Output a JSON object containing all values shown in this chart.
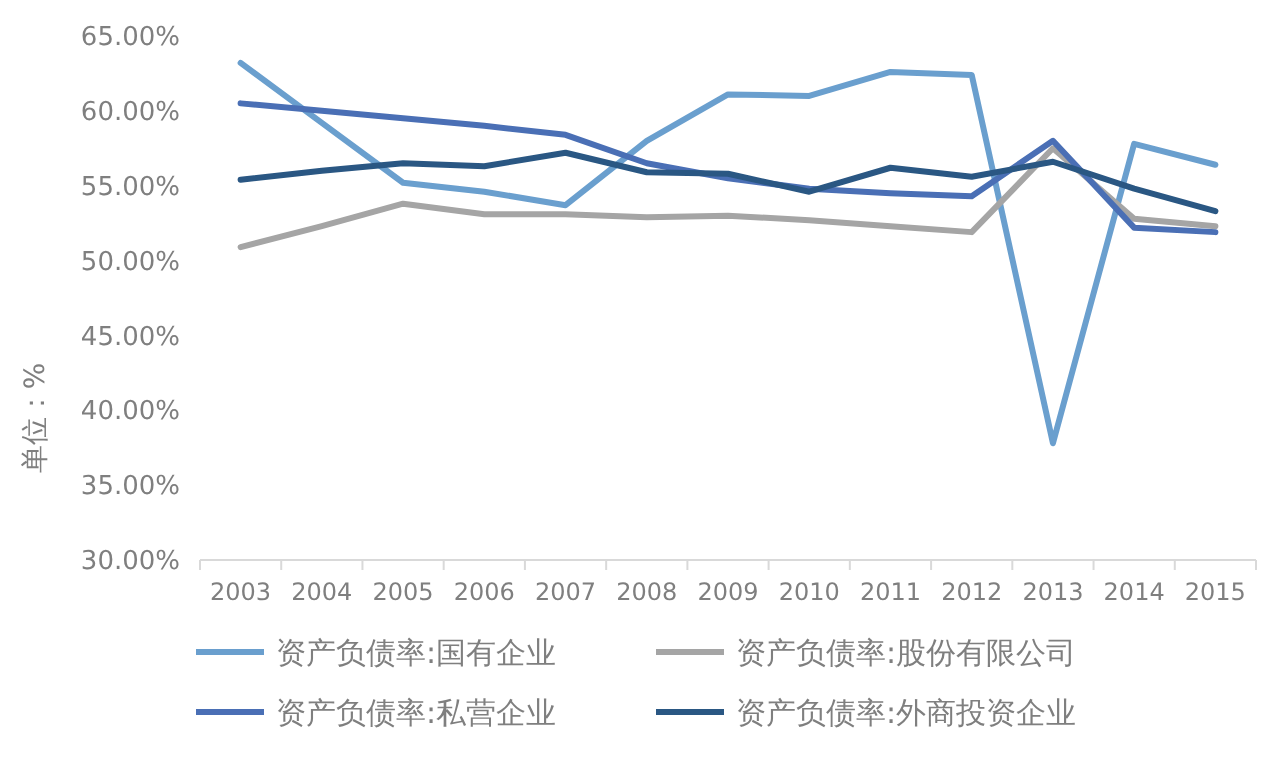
{
  "chart_data": {
    "type": "line",
    "ylabel": "单位：%",
    "categories": [
      "2003",
      "2004",
      "2005",
      "2006",
      "2007",
      "2008",
      "2009",
      "2010",
      "2011",
      "2012",
      "2013",
      "2014",
      "2015"
    ],
    "series": [
      {
        "name": "资产负债率:国有企业",
        "color": "#6a9fce",
        "values": [
          63.2,
          59.2,
          55.2,
          54.6,
          53.7,
          58.0,
          61.1,
          61.0,
          62.6,
          62.4,
          37.8,
          57.8,
          56.4
        ]
      },
      {
        "name": "资产负债率:股份有限公司",
        "color": "#a5a5a5",
        "values": [
          50.9,
          52.3,
          53.8,
          53.1,
          53.1,
          52.9,
          53.0,
          52.7,
          52.3,
          51.9,
          57.5,
          52.8,
          52.3
        ]
      },
      {
        "name": "资产负债率:私营企业",
        "color": "#4a6fb5",
        "values": [
          60.5,
          60.0,
          59.5,
          59.0,
          58.4,
          56.5,
          55.5,
          54.8,
          54.5,
          54.3,
          58.0,
          52.2,
          51.9
        ]
      },
      {
        "name": "资产负债率:外商投资企业",
        "color": "#2a5783",
        "values": [
          55.4,
          56.0,
          56.5,
          56.3,
          57.2,
          55.9,
          55.8,
          54.6,
          56.2,
          55.6,
          56.6,
          54.8,
          53.3
        ]
      }
    ],
    "ylim": [
      30,
      65
    ],
    "yticks": [
      {
        "value": 30,
        "label": "30.00%"
      },
      {
        "value": 35,
        "label": "35.00%"
      },
      {
        "value": 40,
        "label": "40.00%"
      },
      {
        "value": 45,
        "label": "45.00%"
      },
      {
        "value": 50,
        "label": "50.00%"
      },
      {
        "value": 55,
        "label": "55.00%"
      },
      {
        "value": 60,
        "label": "60.00%"
      },
      {
        "value": 65,
        "label": "65.00%"
      }
    ],
    "grid": false,
    "legend": "bottom",
    "marker": "none",
    "line_style": "solid"
  }
}
